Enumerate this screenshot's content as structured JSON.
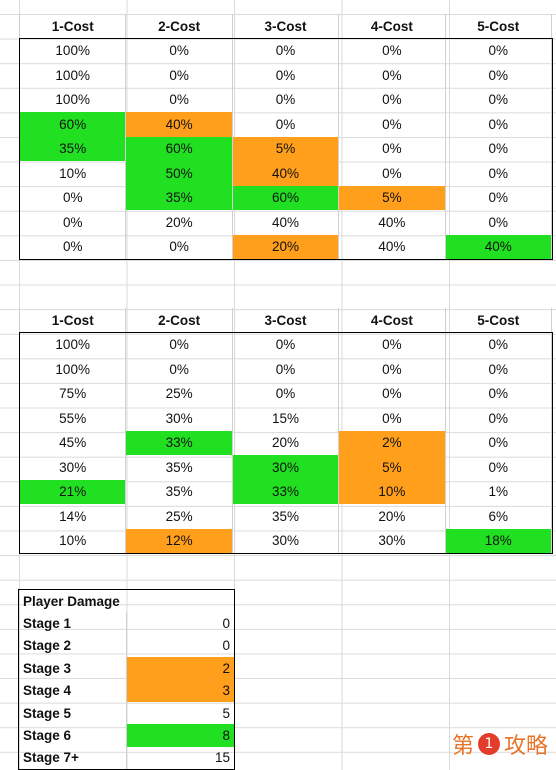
{
  "odds_table_1": {
    "headers": [
      "1-Cost",
      "2-Cost",
      "3-Cost",
      "4-Cost",
      "5-Cost"
    ],
    "rows": [
      [
        {
          "v": "100%",
          "c": ""
        },
        {
          "v": "0%",
          "c": ""
        },
        {
          "v": "0%",
          "c": ""
        },
        {
          "v": "0%",
          "c": ""
        },
        {
          "v": "0%",
          "c": ""
        }
      ],
      [
        {
          "v": "100%",
          "c": ""
        },
        {
          "v": "0%",
          "c": ""
        },
        {
          "v": "0%",
          "c": ""
        },
        {
          "v": "0%",
          "c": ""
        },
        {
          "v": "0%",
          "c": ""
        }
      ],
      [
        {
          "v": "100%",
          "c": ""
        },
        {
          "v": "0%",
          "c": ""
        },
        {
          "v": "0%",
          "c": ""
        },
        {
          "v": "0%",
          "c": ""
        },
        {
          "v": "0%",
          "c": ""
        }
      ],
      [
        {
          "v": "60%",
          "c": "green"
        },
        {
          "v": "40%",
          "c": "orange"
        },
        {
          "v": "0%",
          "c": ""
        },
        {
          "v": "0%",
          "c": ""
        },
        {
          "v": "0%",
          "c": ""
        }
      ],
      [
        {
          "v": "35%",
          "c": "green"
        },
        {
          "v": "60%",
          "c": "green"
        },
        {
          "v": "5%",
          "c": "orange"
        },
        {
          "v": "0%",
          "c": ""
        },
        {
          "v": "0%",
          "c": ""
        }
      ],
      [
        {
          "v": "10%",
          "c": ""
        },
        {
          "v": "50%",
          "c": "green"
        },
        {
          "v": "40%",
          "c": "orange"
        },
        {
          "v": "0%",
          "c": ""
        },
        {
          "v": "0%",
          "c": ""
        }
      ],
      [
        {
          "v": "0%",
          "c": ""
        },
        {
          "v": "35%",
          "c": "green"
        },
        {
          "v": "60%",
          "c": "green"
        },
        {
          "v": "5%",
          "c": "orange"
        },
        {
          "v": "0%",
          "c": ""
        }
      ],
      [
        {
          "v": "0%",
          "c": ""
        },
        {
          "v": "20%",
          "c": ""
        },
        {
          "v": "40%",
          "c": ""
        },
        {
          "v": "40%",
          "c": ""
        },
        {
          "v": "0%",
          "c": ""
        }
      ],
      [
        {
          "v": "0%",
          "c": ""
        },
        {
          "v": "0%",
          "c": ""
        },
        {
          "v": "20%",
          "c": "orange"
        },
        {
          "v": "40%",
          "c": ""
        },
        {
          "v": "40%",
          "c": "green"
        }
      ]
    ]
  },
  "odds_table_2": {
    "headers": [
      "1-Cost",
      "2-Cost",
      "3-Cost",
      "4-Cost",
      "5-Cost"
    ],
    "rows": [
      [
        {
          "v": "100%",
          "c": ""
        },
        {
          "v": "0%",
          "c": ""
        },
        {
          "v": "0%",
          "c": ""
        },
        {
          "v": "0%",
          "c": ""
        },
        {
          "v": "0%",
          "c": ""
        }
      ],
      [
        {
          "v": "100%",
          "c": ""
        },
        {
          "v": "0%",
          "c": ""
        },
        {
          "v": "0%",
          "c": ""
        },
        {
          "v": "0%",
          "c": ""
        },
        {
          "v": "0%",
          "c": ""
        }
      ],
      [
        {
          "v": "75%",
          "c": ""
        },
        {
          "v": "25%",
          "c": ""
        },
        {
          "v": "0%",
          "c": ""
        },
        {
          "v": "0%",
          "c": ""
        },
        {
          "v": "0%",
          "c": ""
        }
      ],
      [
        {
          "v": "55%",
          "c": ""
        },
        {
          "v": "30%",
          "c": ""
        },
        {
          "v": "15%",
          "c": ""
        },
        {
          "v": "0%",
          "c": ""
        },
        {
          "v": "0%",
          "c": ""
        }
      ],
      [
        {
          "v": "45%",
          "c": ""
        },
        {
          "v": "33%",
          "c": "green"
        },
        {
          "v": "20%",
          "c": ""
        },
        {
          "v": "2%",
          "c": "orange"
        },
        {
          "v": "0%",
          "c": ""
        }
      ],
      [
        {
          "v": "30%",
          "c": ""
        },
        {
          "v": "35%",
          "c": ""
        },
        {
          "v": "30%",
          "c": "green"
        },
        {
          "v": "5%",
          "c": "orange"
        },
        {
          "v": "0%",
          "c": ""
        }
      ],
      [
        {
          "v": "21%",
          "c": "green"
        },
        {
          "v": "35%",
          "c": ""
        },
        {
          "v": "33%",
          "c": "green"
        },
        {
          "v": "10%",
          "c": "orange"
        },
        {
          "v": "1%",
          "c": ""
        }
      ],
      [
        {
          "v": "14%",
          "c": ""
        },
        {
          "v": "25%",
          "c": ""
        },
        {
          "v": "35%",
          "c": ""
        },
        {
          "v": "20%",
          "c": ""
        },
        {
          "v": "6%",
          "c": ""
        }
      ],
      [
        {
          "v": "10%",
          "c": ""
        },
        {
          "v": "12%",
          "c": "orange"
        },
        {
          "v": "30%",
          "c": ""
        },
        {
          "v": "30%",
          "c": ""
        },
        {
          "v": "18%",
          "c": "green"
        }
      ]
    ]
  },
  "damage_table": {
    "title": "Player Damage",
    "rows": [
      {
        "label": "Stage 1",
        "value": "0",
        "c": ""
      },
      {
        "label": "Stage 2",
        "value": "0",
        "c": ""
      },
      {
        "label": "Stage 3",
        "value": "2",
        "c": "orange"
      },
      {
        "label": "Stage 4",
        "value": "3",
        "c": "orange"
      },
      {
        "label": "Stage 5",
        "value": "5",
        "c": ""
      },
      {
        "label": "Stage 6",
        "value": "8",
        "c": "green"
      },
      {
        "label": "Stage 7+",
        "value": "15",
        "c": ""
      }
    ]
  },
  "watermark": {
    "left": "第",
    "circle": "1",
    "right": "攻略"
  },
  "colors": {
    "green": "#21e021",
    "orange": "#ff9f1c"
  }
}
